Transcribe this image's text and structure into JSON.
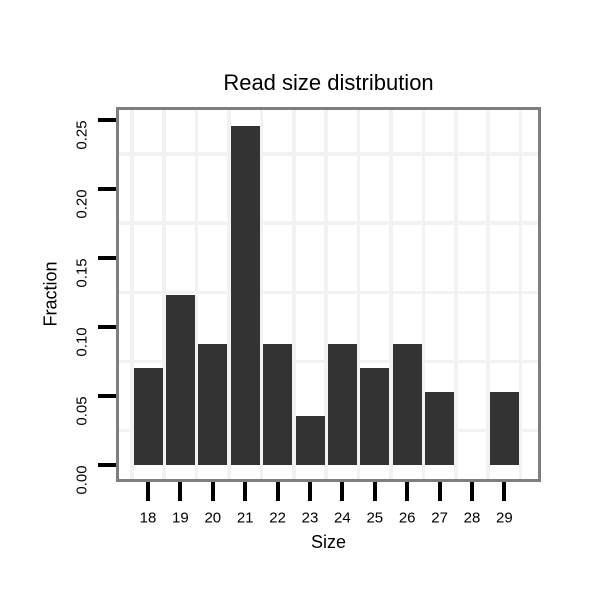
{
  "chart_data": {
    "type": "bar",
    "title": "Read size distribution",
    "xlabel": "Size",
    "ylabel": "Fraction",
    "categories": [
      "18",
      "19",
      "20",
      "21",
      "22",
      "23",
      "24",
      "25",
      "26",
      "27",
      "28",
      "29"
    ],
    "values": [
      0.0702,
      0.1228,
      0.0877,
      0.2456,
      0.0877,
      0.0351,
      0.0877,
      0.0702,
      0.0877,
      0.0526,
      0,
      0.0526
    ],
    "y_tick_values": [
      0,
      0.05,
      0.1,
      0.15,
      0.2,
      0.25
    ],
    "y_tick_labels": [
      "0.00",
      "0.05",
      "0.10",
      "0.15",
      "0.20",
      "0.25"
    ],
    "y_minor_gridline_values": [
      0.025,
      0.075,
      0.125,
      0.175,
      0.225
    ],
    "ylim": [
      -0.0123,
      0.2579
    ],
    "grid": "minor gridlines only, light gray, vertical at category midpoints",
    "legend_position": "none",
    "colors": {
      "bar": "#333333",
      "grid": "#f2f2f2",
      "panel_border": "#7e7e7e",
      "axis_tick": "#000000",
      "text": "#000000",
      "background": "#ffffff"
    }
  }
}
